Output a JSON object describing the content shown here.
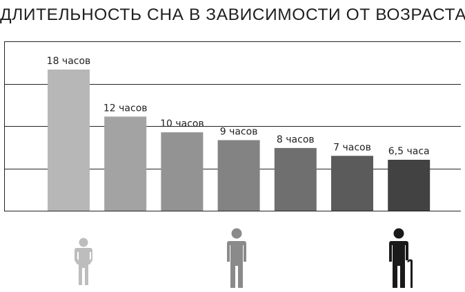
{
  "title": "ДЛИТЕЛЬНОСТЬ СНА В ЗАВИСИМОСТИ ОТ ВОЗРАСТА",
  "chart_data": {
    "type": "bar",
    "title": "ДЛИТЕЛЬНОСТЬ СНА В ЗАВИСИМОСТИ ОТ ВОЗРАСТА",
    "values": [
      18,
      12,
      10,
      9,
      8,
      7,
      6.5
    ],
    "labels": [
      "18 часов",
      "12 часов",
      "10 часов",
      "9 часов",
      "8 часов",
      "7 часов",
      "6,5 часа"
    ],
    "colors": [
      "#b7b7b7",
      "#a3a3a3",
      "#939393",
      "#838383",
      "#6f6f70",
      "#5b5b5c",
      "#424243"
    ],
    "ylim": [
      0,
      21.6
    ],
    "gridlines": [
      5.4,
      10.8,
      16.2,
      21.6
    ],
    "grid": true,
    "figures": [
      {
        "name": "child",
        "color": "#bdbdbd"
      },
      {
        "name": "adult",
        "color": "#8a8a8a"
      },
      {
        "name": "elderly",
        "color": "#1a1a1a"
      }
    ]
  }
}
